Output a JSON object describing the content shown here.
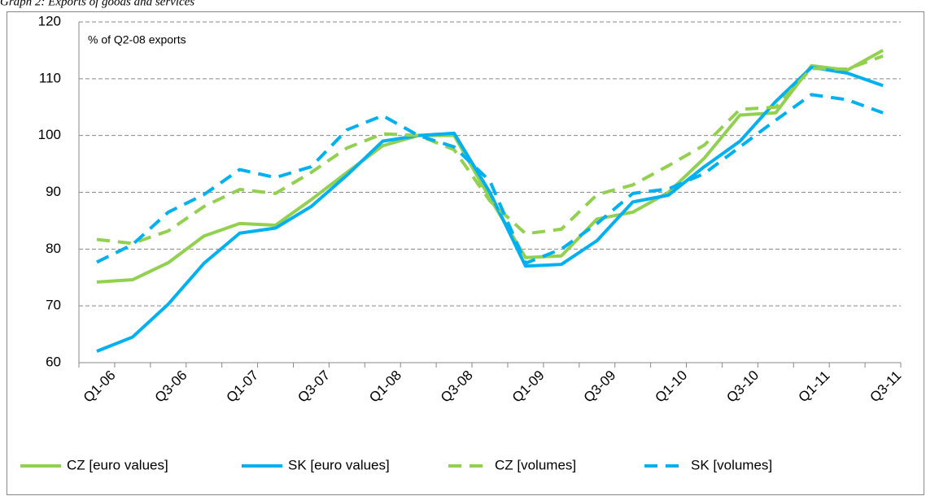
{
  "chart_data": {
    "type": "line",
    "title": "Graph 2: Exports of goods and services",
    "annotation": "% of Q2-08 exports",
    "categories": [
      "Q1-06",
      null,
      "Q3-06",
      null,
      "Q1-07",
      null,
      "Q3-07",
      null,
      "Q1-08",
      null,
      "Q3-08",
      null,
      "Q1-09",
      null,
      "Q3-09",
      null,
      "Q1-10",
      null,
      "Q3-10",
      null,
      "Q1-11",
      null,
      "Q3-11"
    ],
    "series": [
      {
        "name": "CZ [euro values]",
        "color": "#92d050",
        "dash": false,
        "values": [
          74.2,
          74.6,
          77.6,
          82.3,
          84.5,
          84.2,
          88.7,
          93.5,
          98.2,
          100,
          100,
          89,
          78.5,
          78.8,
          85.3,
          86.5,
          90,
          96,
          103.6,
          104,
          112.3,
          111.5,
          115
        ]
      },
      {
        "name": "SK [euro values]",
        "color": "#00b0f0",
        "dash": false,
        "values": [
          62,
          64.5,
          70.3,
          77.5,
          82.8,
          83.7,
          87.5,
          93,
          99,
          100,
          100.4,
          90,
          77,
          77.3,
          81.5,
          88.3,
          89.5,
          94.5,
          99,
          106,
          112,
          111,
          108.8
        ]
      },
      {
        "name": "CZ [volumes]",
        "color": "#92d050",
        "dash": true,
        "values": [
          81.7,
          81,
          83.2,
          87.5,
          90.5,
          89.8,
          93.5,
          97.8,
          100.3,
          100,
          97.5,
          88.5,
          82.7,
          83.5,
          89.6,
          91.3,
          94.7,
          98.3,
          104.6,
          105,
          111.8,
          111.7,
          114
        ]
      },
      {
        "name": "SK [volumes]",
        "color": "#00b0f0",
        "dash": true,
        "values": [
          77.7,
          80.8,
          86.5,
          89.6,
          94,
          92.6,
          94.5,
          101,
          103.5,
          100,
          98,
          92,
          77.5,
          80,
          84.5,
          89.8,
          90.6,
          93.3,
          98,
          102.7,
          107.2,
          106.3,
          104
        ]
      }
    ],
    "ylim": [
      60,
      120
    ],
    "yticks": [
      60,
      70,
      80,
      90,
      100,
      110,
      120
    ],
    "grid": true,
    "legend": "bottom"
  }
}
